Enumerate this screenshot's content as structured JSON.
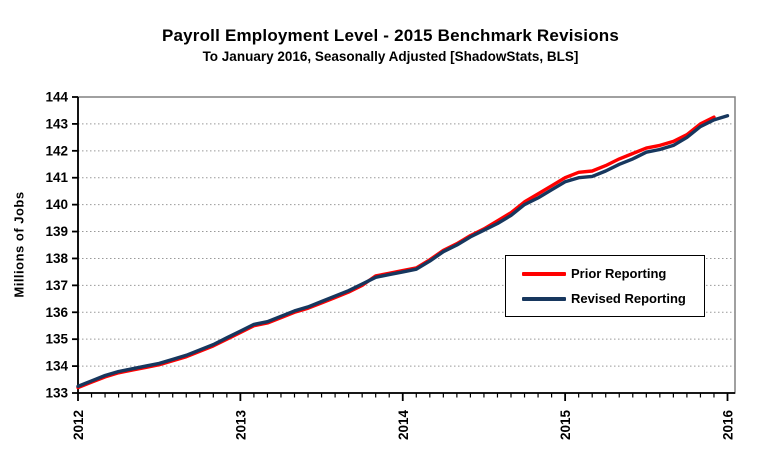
{
  "chart": {
    "title": "Payroll Employment Level - 2015 Benchmark Revisions",
    "subtitle": "To January 2016, Seasonally Adjusted [ShadowStats, BLS]",
    "y_axis_label": "Millions of Jobs"
  },
  "chart_data": {
    "type": "line",
    "title": "Payroll Employment Level - 2015 Benchmark Revisions",
    "subtitle": "To January 2016, Seasonally Adjusted [ShadowStats, BLS]",
    "xlabel": "",
    "ylabel": "Millions of Jobs",
    "ylim": [
      133,
      144
    ],
    "y_tick_step": 1,
    "x_tick_labels": [
      "2012",
      "2013",
      "2014",
      "2015",
      "2016"
    ],
    "x_unit": "month",
    "x_start": "2012-01",
    "x_end": "2016-01",
    "months_total": 48,
    "grid": "horizontal-dotted",
    "grid_color": "#999999",
    "frame_color": "#808080",
    "axis_color": "#000000",
    "legend_position": "inside-right",
    "series": [
      {
        "name": "Prior Reporting",
        "color": "#ff0000",
        "start_month_index": 0,
        "values": [
          133.2,
          133.4,
          133.6,
          133.75,
          133.85,
          133.95,
          134.05,
          134.2,
          134.35,
          134.55,
          134.75,
          135.0,
          135.25,
          135.5,
          135.6,
          135.8,
          136.0,
          136.15,
          136.35,
          136.55,
          136.75,
          137.0,
          137.35,
          137.45,
          137.55,
          137.65,
          137.95,
          138.3,
          138.55,
          138.85,
          139.1,
          139.4,
          139.7,
          140.1,
          140.4,
          140.7,
          141.0,
          141.2,
          141.25,
          141.45,
          141.7,
          141.9,
          142.1,
          142.2,
          142.35,
          142.6,
          143.0,
          143.25
        ]
      },
      {
        "name": "Revised Reporting",
        "color": "#17375e",
        "start_month_index": 0,
        "values": [
          133.25,
          133.45,
          133.65,
          133.8,
          133.9,
          134.0,
          134.1,
          134.25,
          134.4,
          134.6,
          134.8,
          135.05,
          135.3,
          135.55,
          135.65,
          135.85,
          136.05,
          136.2,
          136.4,
          136.6,
          136.8,
          137.05,
          137.3,
          137.4,
          137.5,
          137.6,
          137.9,
          138.25,
          138.5,
          138.8,
          139.05,
          139.3,
          139.6,
          140.0,
          140.25,
          140.55,
          140.85,
          141.0,
          141.05,
          141.25,
          141.5,
          141.7,
          141.95,
          142.05,
          142.2,
          142.5,
          142.9,
          143.15,
          143.3
        ]
      }
    ]
  }
}
